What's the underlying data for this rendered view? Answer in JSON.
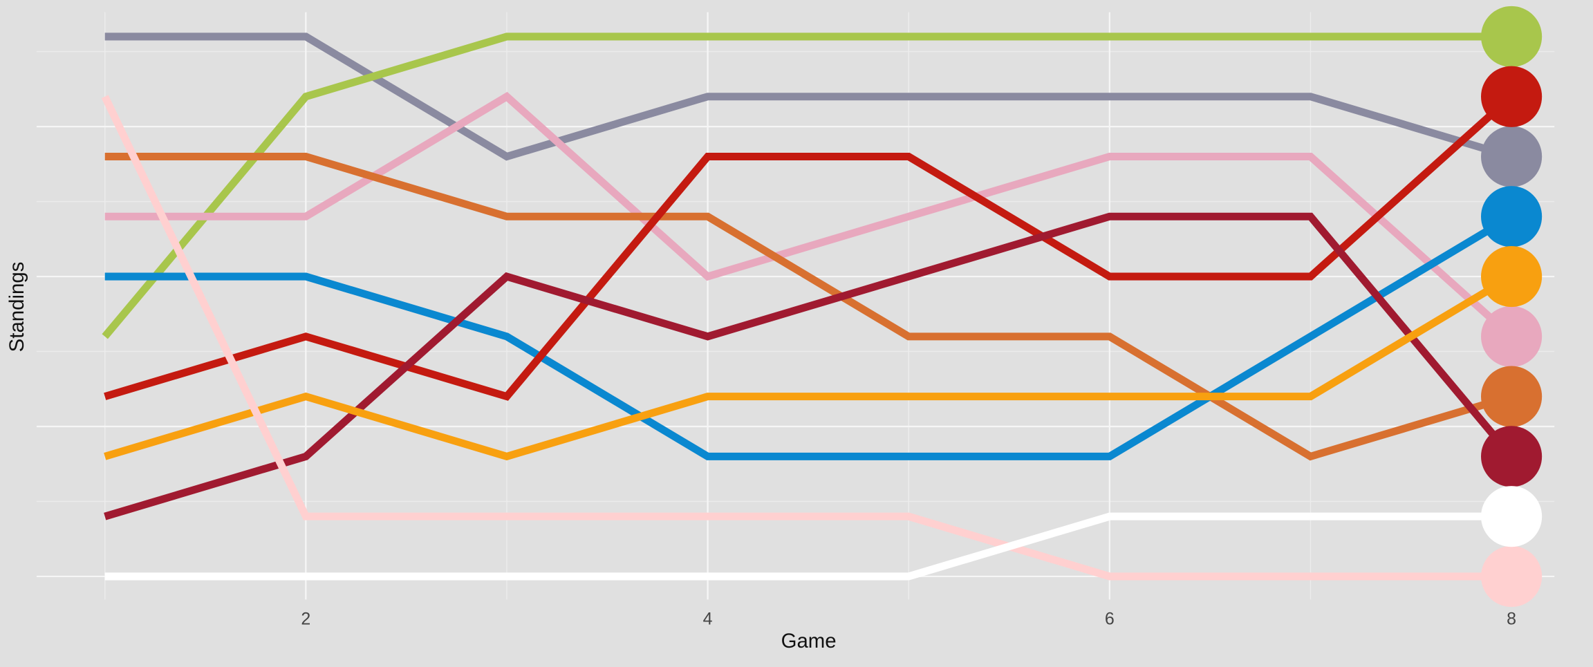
{
  "chart_data": {
    "type": "line",
    "x_label": "Game",
    "y_label": "Standings",
    "x": [
      1,
      2,
      3,
      4,
      5,
      6,
      7,
      8
    ],
    "xlim": [
      0.66,
      8.34
    ],
    "xticks": [
      2,
      4,
      6,
      8
    ],
    "ylim": [
      10.47,
      0.39
    ],
    "yticks": [
      2.5,
      5,
      7.5,
      10
    ],
    "grid": true,
    "series": [
      {
        "color": "#8a8aa0",
        "values": [
          1,
          1,
          3,
          2,
          2,
          2,
          2,
          3
        ]
      },
      {
        "color": "#a8c64c",
        "values": [
          6,
          2,
          1,
          1,
          1,
          1,
          1,
          1
        ]
      },
      {
        "color": "#e8a8be",
        "values": [
          4,
          4,
          2,
          5,
          4,
          3,
          3,
          6
        ]
      },
      {
        "color": "#d87030",
        "values": [
          3,
          3,
          4,
          4,
          6,
          6,
          8,
          7
        ]
      },
      {
        "color": "#0a88d0",
        "values": [
          5,
          5,
          6,
          8,
          8,
          8,
          6,
          4
        ]
      },
      {
        "color": "#c41a10",
        "values": [
          7,
          6,
          7,
          3,
          3,
          5,
          5,
          2
        ]
      },
      {
        "color": "#a01a30",
        "values": [
          9,
          8,
          5,
          6,
          5,
          4,
          4,
          8
        ]
      },
      {
        "color": "#f8a010",
        "values": [
          8,
          7,
          8,
          7,
          7,
          7,
          7,
          5
        ]
      },
      {
        "color": "#ffd0d0",
        "values": [
          2,
          9,
          9,
          9,
          9,
          10,
          10,
          10
        ]
      },
      {
        "color": "#ffffff",
        "values": [
          10,
          10,
          10,
          10,
          10,
          9,
          9,
          9
        ]
      }
    ]
  }
}
